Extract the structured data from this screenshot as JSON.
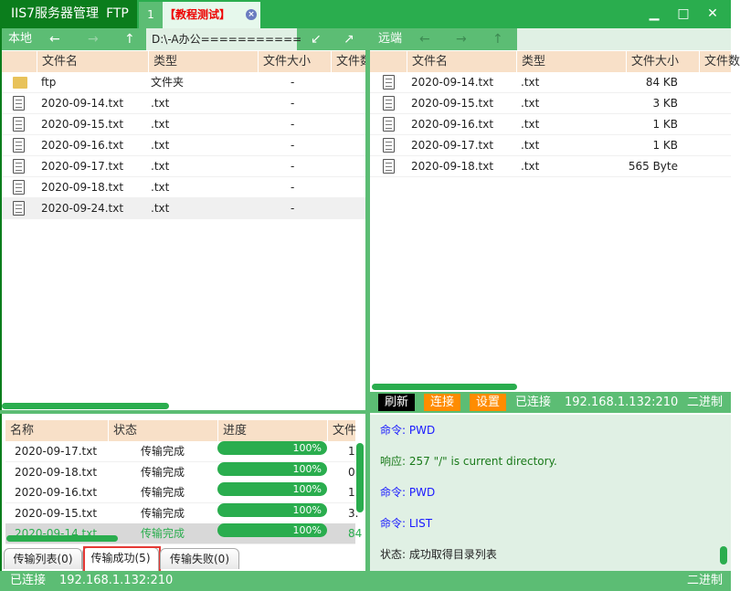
{
  "title": {
    "app": "IIS7服务器管理",
    "ftp": "FTP",
    "tabs": [
      {
        "label": "1"
      },
      {
        "label": "【教程测试】"
      }
    ],
    "close_tab": "×",
    "minimize": "▁",
    "maximize": "□",
    "close": "✕"
  },
  "local": {
    "label": "本地",
    "back": "←",
    "forward": "→",
    "up": "↑",
    "path": "D:\\-A办公===========",
    "btn_download": "↙",
    "btn_upload": "↗",
    "columns": [
      "文件名",
      "类型",
      "文件大小",
      "文件数"
    ],
    "files": [
      {
        "name": "ftp",
        "type": "文件夹",
        "size": "-",
        "icon": "folder-icon"
      },
      {
        "name": "2020-09-14.txt",
        "type": ".txt",
        "size": "-",
        "icon": "file-icon"
      },
      {
        "name": "2020-09-15.txt",
        "type": ".txt",
        "size": "-",
        "icon": "file-icon"
      },
      {
        "name": "2020-09-16.txt",
        "type": ".txt",
        "size": "-",
        "icon": "file-icon"
      },
      {
        "name": "2020-09-17.txt",
        "type": ".txt",
        "size": "-",
        "icon": "file-icon"
      },
      {
        "name": "2020-09-18.txt",
        "type": ".txt",
        "size": "-",
        "icon": "file-icon"
      },
      {
        "name": "2020-09-24.txt",
        "type": ".txt",
        "size": "-",
        "icon": "file-icon"
      }
    ]
  },
  "remote": {
    "label": "远端",
    "back": "←",
    "forward": "→",
    "up": "↑",
    "columns": [
      "文件名",
      "类型",
      "文件大小",
      "文件数"
    ],
    "files": [
      {
        "name": "2020-09-14.txt",
        "type": ".txt",
        "size": "84 KB"
      },
      {
        "name": "2020-09-15.txt",
        "type": ".txt",
        "size": "3 KB"
      },
      {
        "name": "2020-09-16.txt",
        "type": ".txt",
        "size": "1 KB"
      },
      {
        "name": "2020-09-17.txt",
        "type": ".txt",
        "size": "1 KB"
      },
      {
        "name": "2020-09-18.txt",
        "type": ".txt",
        "size": "565 Byte"
      }
    ],
    "toolbar": {
      "refresh": "刷新",
      "connect": "连接",
      "settings": "设置",
      "status": "已连接",
      "address": "192.168.1.132:210",
      "mode": "二进制"
    }
  },
  "transfers": {
    "columns": [
      "名称",
      "状态",
      "进度",
      "文件"
    ],
    "rows": [
      {
        "name": "2020-09-17.txt",
        "status": "传输完成",
        "progress": "100%",
        "size": "1."
      },
      {
        "name": "2020-09-18.txt",
        "status": "传输完成",
        "progress": "100%",
        "size": "0."
      },
      {
        "name": "2020-09-16.txt",
        "status": "传输完成",
        "progress": "100%",
        "size": "1."
      },
      {
        "name": "2020-09-15.txt",
        "status": "传输完成",
        "progress": "100%",
        "size": "3."
      },
      {
        "name": "2020-09-14.txt",
        "status": "传输完成",
        "progress": "100%",
        "size": "84"
      }
    ],
    "tabs": [
      {
        "label": "传输列表(0)"
      },
      {
        "label": "传输成功(5)"
      },
      {
        "label": "传输失败(0)"
      }
    ]
  },
  "log": [
    {
      "prefix": "命令:",
      "text": "PWD",
      "color": "#1a1aff"
    },
    {
      "prefix": "响应:",
      "text": "257 \"/\" is current directory.",
      "color": "#1a7a1a"
    },
    {
      "prefix": "命令:",
      "text": "PWD",
      "color": "#1a1aff"
    },
    {
      "prefix": "命令:",
      "text": "LIST",
      "color": "#1a1aff"
    },
    {
      "prefix": "状态:",
      "text": "成功取得目录列表",
      "color": "#222"
    }
  ],
  "statusbar": {
    "status": "已连接",
    "address": "192.168.1.132:210",
    "mode": "二进制"
  }
}
